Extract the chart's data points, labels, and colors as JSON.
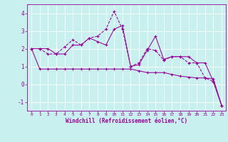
{
  "xlabel": "Windchill (Refroidissement éolien,°C)",
  "bg_color": "#c8f0ee",
  "line_color": "#990099",
  "xlim": [
    -0.5,
    23.5
  ],
  "ylim": [
    -1.5,
    4.5
  ],
  "yticks": [
    -1,
    0,
    1,
    2,
    3,
    4
  ],
  "xticks": [
    0,
    1,
    2,
    3,
    4,
    5,
    6,
    7,
    8,
    9,
    10,
    11,
    12,
    13,
    14,
    15,
    16,
    17,
    18,
    19,
    20,
    21,
    22,
    23
  ],
  "line1_x": [
    0,
    1,
    2,
    3,
    4,
    5,
    6,
    7,
    8,
    9,
    10,
    11,
    12,
    13,
    14,
    15,
    16,
    17,
    18,
    19,
    20,
    21,
    22,
    23
  ],
  "line1_y": [
    2.0,
    2.0,
    2.0,
    1.7,
    1.7,
    2.2,
    2.2,
    2.6,
    2.4,
    2.2,
    3.1,
    3.3,
    1.0,
    1.1,
    1.9,
    2.7,
    1.4,
    1.55,
    1.55,
    1.55,
    1.2,
    1.2,
    0.15,
    -1.2
  ],
  "line2_x": [
    0,
    1,
    2,
    3,
    4,
    5,
    6,
    7,
    8,
    9,
    10,
    11,
    12,
    13,
    14,
    15,
    16,
    17,
    18,
    19,
    20,
    21,
    22,
    23
  ],
  "line2_y": [
    2.0,
    2.0,
    1.7,
    1.7,
    2.1,
    2.5,
    2.2,
    2.6,
    2.7,
    3.1,
    4.1,
    3.1,
    1.0,
    1.2,
    2.0,
    1.9,
    1.35,
    1.55,
    1.55,
    1.2,
    1.2,
    0.35,
    0.15,
    -1.2
  ],
  "line3_x": [
    0,
    1,
    2,
    3,
    4,
    5,
    6,
    7,
    8,
    9,
    10,
    11,
    12,
    13,
    14,
    15,
    16,
    17,
    18,
    19,
    20,
    21,
    22,
    23
  ],
  "line3_y": [
    2.0,
    0.85,
    0.85,
    0.85,
    0.85,
    0.85,
    0.85,
    0.85,
    0.85,
    0.85,
    0.85,
    0.85,
    0.85,
    0.75,
    0.65,
    0.65,
    0.65,
    0.55,
    0.45,
    0.4,
    0.35,
    0.35,
    0.3,
    -1.2
  ]
}
